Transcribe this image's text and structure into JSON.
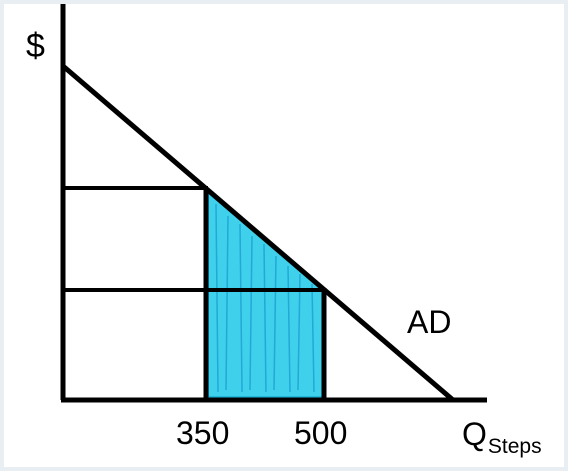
{
  "diagram": {
    "y_axis_label": "$",
    "x_axis_label": "Q",
    "x_axis_subscript": "Steps",
    "curve_label": "AD",
    "ticks": [
      "350",
      "500"
    ]
  },
  "colors": {
    "background": "#e9eef2",
    "panel": "#ffffff",
    "lines": "#000000",
    "shaded_area": "#3fd0ec"
  }
}
